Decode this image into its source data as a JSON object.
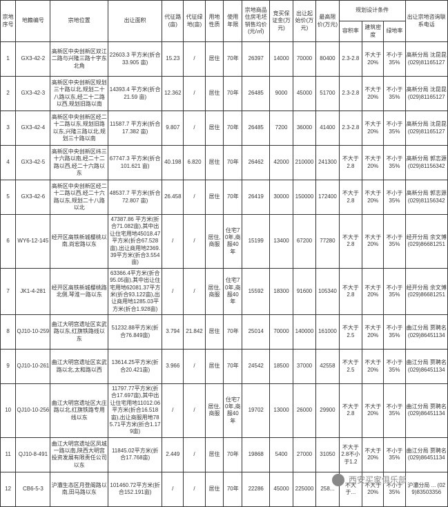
{
  "header": {
    "seq": "宗地序号",
    "code": "地籍编号",
    "loc": "宗地位置",
    "area": "出让面积",
    "road": "代征路(亩)",
    "green": "代征绿地(亩)",
    "use": "用地性质",
    "years": "使用年限",
    "price": "宗地商品住房毛坯销售均价(元/㎡)",
    "deposit": "竞买保证金(万元)",
    "start": "出让起始价(万元)",
    "max": "最高限价(万元)",
    "plan_group": "规划设计条件",
    "far": "容积率",
    "dens": "建筑密度",
    "gr": "绿地率",
    "contact": "出让宗地咨询联系电话"
  },
  "rows": [
    {
      "seq": "1",
      "code": "GX3-42-2",
      "loc": "高新区中央创新区双江二路与兴隆三路十字东北角",
      "area": "22603.3 平方米(折合 33.905 亩)",
      "road": "15.23",
      "green": "/",
      "use": "居住",
      "years": "70年",
      "price": "26397",
      "deposit": "14000",
      "start": "70000",
      "max": "80400",
      "far": "2.3-2.8",
      "dens": "不大于20%",
      "gr": "不小于35%",
      "contact": "高新分局 沈昆昆 (029)81165127"
    },
    {
      "seq": "2",
      "code": "GX3-42-3",
      "loc": "高新区中央创新区规划三十路以北,规划二十八路以东,经二十二路以西,规划旧路以南",
      "area": "14393.4 平方米(折合 21.59 亩)",
      "road": "12.362",
      "green": "/",
      "use": "居住",
      "years": "70年",
      "price": "26485",
      "deposit": "9000",
      "start": "45000",
      "max": "51700",
      "far": "2.3-2.8",
      "dens": "不大于20%",
      "gr": "不小于35%",
      "contact": "高新分局 沈昆昆 (029)81165127"
    },
    {
      "seq": "3",
      "code": "GX3-42-4",
      "loc": "高新区中央创新区经二十二路以东,规划旧路以东,兴隆三路以北,规划三十路以南",
      "area": "11587.7 平方米(折合 17.382 亩)",
      "road": "9.807",
      "green": "/",
      "use": "居住",
      "years": "70年",
      "price": "26485",
      "deposit": "7200",
      "start": "36000",
      "max": "41400",
      "far": "2.3-2.8",
      "dens": "不大于20%",
      "gr": "不小于35%",
      "contact": "高新分局 沈昆昆 (029)81165127"
    },
    {
      "seq": "4",
      "code": "GX3-42-5",
      "loc": "高新区中央创新区纬三十六路以南,经二十二路以西,经二十六路以东",
      "area": "67747.3 平方米(折合 101.621 亩)",
      "road": "40.198",
      "green": "6.820",
      "use": "居住",
      "years": "70年",
      "price": "26462",
      "deposit": "42000",
      "start": "210000",
      "max": "241300",
      "far": "不大于2.8",
      "dens": "不大于20%",
      "gr": "不小于35%",
      "contact": "高新分局 郭志源 (029)81156342"
    },
    {
      "seq": "5",
      "code": "GX3-42-6",
      "loc": "高新区中央创新区经二十二路以西,经二十六路以东,规划二十八路以北",
      "area": "48537.7 平方米(折合 72.807 亩)",
      "road": "26.458",
      "green": "/",
      "use": "居住",
      "years": "70年",
      "price": "26419",
      "deposit": "30000",
      "start": "150000",
      "max": "172400",
      "far": "不大于2.8",
      "dens": "不大于20%",
      "gr": "不小于35%",
      "contact": "高新分局 郭志源 (029)81156342"
    },
    {
      "seq": "6",
      "code": "WY6-12-145",
      "loc": "经开区高铁新城樱桃以南,尚宏路以东",
      "area": "47387.86 平方米(折合71.082亩),其中出让住宅用地45018.47平方米(折合67.528亩),出让商用地2369.39平方米(折合3.554亩)",
      "road": "/",
      "green": "/",
      "use": "居住,商服",
      "years": "住宅70年,商服40年",
      "price": "15199",
      "deposit": "13400",
      "start": "67200",
      "max": "77280",
      "far": "不大于2.8",
      "dens": "不大于20%",
      "gr": "不小于35%",
      "contact": "经开分局 余文博 (029)86681251"
    },
    {
      "seq": "7",
      "code": "JK1-4-281",
      "loc": "经开区高铁新城樱桃路北侧,琴淮一路以东",
      "area": "63366.4平方米(折合95.05亩),其中出让住宅用地62081.37平方米(折合93.122亩),出让商用地1285.03平方米(折合1.928亩)",
      "road": "/",
      "green": "/",
      "use": "居住,商服",
      "years": "住宅70年,商服40年",
      "price": "15592",
      "deposit": "18300",
      "start": "91600",
      "max": "105340",
      "far": "不大于2.8",
      "dens": "不大于20%",
      "gr": "不小于35%",
      "contact": "经开分局 余文博 (029)86681251"
    },
    {
      "seq": "8",
      "code": "QJ10-10-259",
      "loc": "曲江大明宫遗址区玄武路以东,红旗铁路线以东",
      "area": "51232.88平方米(折合76.849亩)",
      "road": "3.794",
      "green": "21.842",
      "use": "居住",
      "years": "70年",
      "price": "25014",
      "deposit": "70000",
      "start": "140000",
      "max": "161000",
      "far": "不大于2.5",
      "dens": "不大于20%",
      "gr": "不小于35%",
      "contact": "曲江分局 贾聘名 (029)86451134"
    },
    {
      "seq": "9",
      "code": "QJ10-10-261",
      "loc": "曲江大明宫遗址区玄武路以北,太和路以西",
      "area": "13614.25平方米(折合20.421亩)",
      "road": "3.966",
      "green": "/",
      "use": "居住",
      "years": "70年",
      "price": "24542",
      "deposit": "18500",
      "start": "37000",
      "max": "42558",
      "far": "不大于2.5",
      "dens": "不大于20%",
      "gr": "不小于35%",
      "contact": "曲江分局 贾聘名 (029)86451134"
    },
    {
      "seq": "10",
      "code": "QJ10-10-256",
      "loc": "曲江大明宫遗址区大庄路以北,红旗铁路专用线以东",
      "area": "11797.77平方米(折合17.697亩),其中出让住宅用地11012.06平方米(折合16.518亩),出让商服用地785.71平方米(折合1.179亩)",
      "road": "/",
      "green": "/",
      "use": "居住,商服",
      "years": "住宅70年,商服40年",
      "price": "19702",
      "deposit": "13000",
      "start": "26000",
      "max": "29900",
      "far": "不大于2.8",
      "dens": "不大于20%",
      "gr": "不小于35%",
      "contact": "曲江分局 贾聘名 (029)86451134"
    },
    {
      "seq": "11",
      "code": "QJ10-8-491",
      "loc": "曲江大明宫遗址区凤城一路以南,陕西大明宫投资发展有限责任公司以东",
      "area": "11845.02平方米(折合17.768亩)",
      "road": "2.449",
      "green": "/",
      "use": "居住",
      "years": "70年",
      "price": "19868",
      "deposit": "5400",
      "start": "27000",
      "max": "31050",
      "far": "不大于2.8不小于1.2",
      "dens": "不大于20%",
      "gr": "不小于35%",
      "contact": "曲江分局 贾聘名 (029)86451134"
    },
    {
      "seq": "12",
      "code": "CB6-5-3",
      "loc": "沪灞生态区月登阁路以南,田马路以东",
      "area": "101460.72平方米(折合152.191亩)",
      "road": "/",
      "green": "/",
      "use": "居住",
      "years": "70年",
      "price": "22286",
      "deposit": "45000",
      "start": "225000",
      "max": "258...",
      "far": "不大于...",
      "dens": "不大于20%",
      "gr": "不小于35%",
      "contact": "沪灞分局 ... (029)83503356"
    }
  ],
  "watermark": "西安买家俱乐部"
}
